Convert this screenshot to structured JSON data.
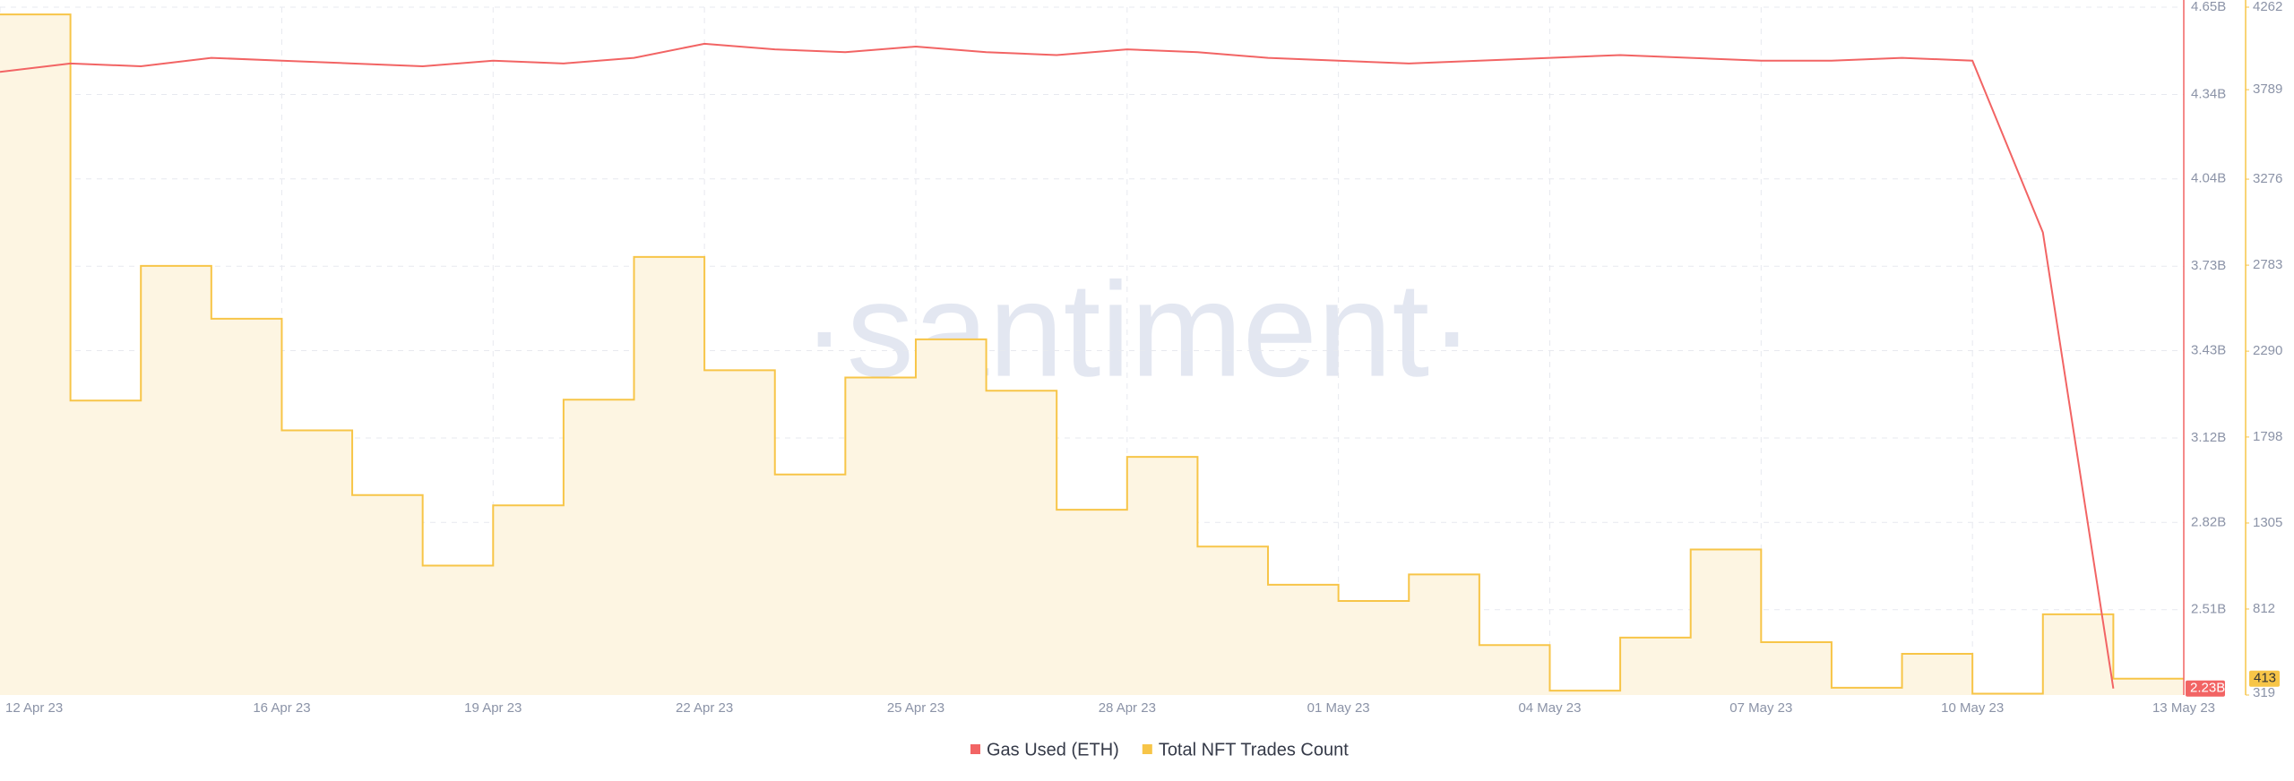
{
  "chart_data": {
    "type": "line",
    "watermark": "·santiment·",
    "x": [
      "12 Apr 23",
      "13 Apr 23",
      "14 Apr 23",
      "15 Apr 23",
      "16 Apr 23",
      "17 Apr 23",
      "18 Apr 23",
      "19 Apr 23",
      "20 Apr 23",
      "21 Apr 23",
      "22 Apr 23",
      "23 Apr 23",
      "24 Apr 23",
      "25 Apr 23",
      "26 Apr 23",
      "27 Apr 23",
      "28 Apr 23",
      "29 Apr 23",
      "30 Apr 23",
      "01 May 23",
      "02 May 23",
      "03 May 23",
      "04 May 23",
      "05 May 23",
      "06 May 23",
      "07 May 23",
      "08 May 23",
      "09 May 23",
      "10 May 23",
      "11 May 23",
      "12 May 23"
    ],
    "xlim": [
      "12 Apr 23",
      "13 May 23"
    ],
    "xticks": [
      "12 Apr 23",
      "16 Apr 23",
      "19 Apr 23",
      "22 Apr 23",
      "25 Apr 23",
      "28 Apr 23",
      "01 May 23",
      "04 May 23",
      "07 May 23",
      "10 May 23",
      "13 May 23"
    ],
    "ylim": [
      2207000000,
      4650000000
    ],
    "yticks": [
      {
        "value": 4650000000,
        "label": "4.65B"
      },
      {
        "value": 4340000000,
        "label": "4.34B"
      },
      {
        "value": 4040000000,
        "label": "4.04B"
      },
      {
        "value": 3730000000,
        "label": "3.73B"
      },
      {
        "value": 3430000000,
        "label": "3.43B"
      },
      {
        "value": 3120000000,
        "label": "3.12B"
      },
      {
        "value": 2820000000,
        "label": "2.82B"
      },
      {
        "value": 2510000000,
        "label": "2.51B"
      }
    ],
    "y2lim": [
      319,
      4262
    ],
    "y2ticks": [
      4262,
      3789,
      3276,
      2783,
      2290,
      1798,
      1305,
      812,
      319
    ],
    "grid": true,
    "series": [
      {
        "name": "Gas Used (ETH)",
        "color": "#f26464",
        "step": false,
        "end_label": "2.23B",
        "values": [
          4420000000,
          4450000000,
          4440000000,
          4470000000,
          4460000000,
          4450000000,
          4440000000,
          4460000000,
          4450000000,
          4470000000,
          4520000000,
          4500000000,
          4490000000,
          4510000000,
          4490000000,
          4480000000,
          4500000000,
          4490000000,
          4470000000,
          4460000000,
          4450000000,
          4460000000,
          4470000000,
          4480000000,
          4470000000,
          4460000000,
          4460000000,
          4470000000,
          4460000000,
          3850000000,
          2230000000
        ]
      },
      {
        "name": "Total NFT Trades Count",
        "color": "#f7c548",
        "axis": "y2",
        "step": true,
        "end_label": "413",
        "values": [
          4220,
          2007,
          2779,
          2476,
          1836,
          1465,
          1061,
          1406,
          2012,
          2830,
          2181,
          1583,
          2139,
          2358,
          2063,
          1381,
          1684,
          1170,
          951,
          858,
          1010,
          605,
          344,
          648,
          1153,
          622,
          361,
          555,
          327,
          782,
          413
        ]
      }
    ]
  }
}
